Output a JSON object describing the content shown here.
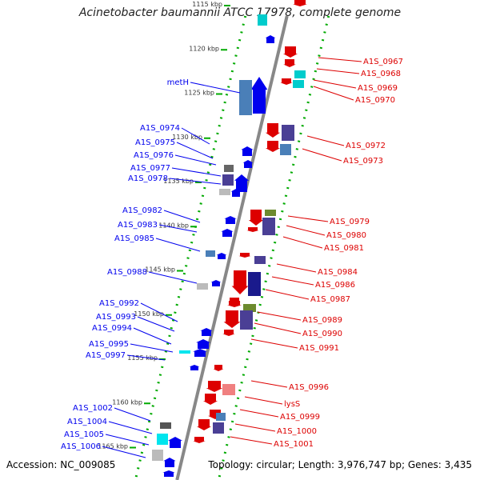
{
  "title": "Acinetobacter baumannii ATCC 17978, complete genome",
  "footer": {
    "accession": "Accession: NC_009085",
    "topology": "Topology: circular; Length: 3,976,747 bp; Genes: 3,435"
  },
  "colors": {
    "forward": "#0000ee",
    "reverse": "#dd0000",
    "ticks": "#00aa00",
    "backbone": "#888888"
  },
  "scale": [
    {
      "label": "1115 kbp",
      "kbp": 1115
    },
    {
      "label": "1120 kbp",
      "kbp": 1120
    },
    {
      "label": "1125 kbp",
      "kbp": 1125
    },
    {
      "label": "1130 kbp",
      "kbp": 1130
    },
    {
      "label": "1135 kbp",
      "kbp": 1135
    },
    {
      "label": "1140 kbp",
      "kbp": 1140
    },
    {
      "label": "1145 kbp",
      "kbp": 1145
    },
    {
      "label": "1150 kbp",
      "kbp": 1150
    },
    {
      "label": "1155 kbp",
      "kbp": 1155
    },
    {
      "label": "1160 kbp",
      "kbp": 1160
    },
    {
      "label": "1165 kbp",
      "kbp": 1165
    }
  ],
  "forward_labels": [
    "metH",
    "A1S_0974",
    "A1S_0975",
    "A1S_0976",
    "A1S_0977",
    "A1S_0978",
    "A1S_0982",
    "A1S_0983",
    "A1S_0985",
    "A1S_0988",
    "A1S_0992",
    "A1S_0993",
    "A1S_0994",
    "A1S_0995",
    "A1S_0997",
    "A1S_1002",
    "A1S_1004",
    "A1S_1005",
    "A1S_1006"
  ],
  "reverse_labels": [
    "A1S_0967",
    "A1S_0968",
    "A1S_0969",
    "A1S_0970",
    "A1S_0972",
    "A1S_0973",
    "A1S_0979",
    "A1S_0980",
    "A1S_0981",
    "A1S_0984",
    "A1S_0986",
    "A1S_0987",
    "A1S_0989",
    "A1S_0990",
    "A1S_0991",
    "A1S_0996",
    "lysS",
    "A1S_0999",
    "A1S_1000",
    "A1S_1001"
  ]
}
